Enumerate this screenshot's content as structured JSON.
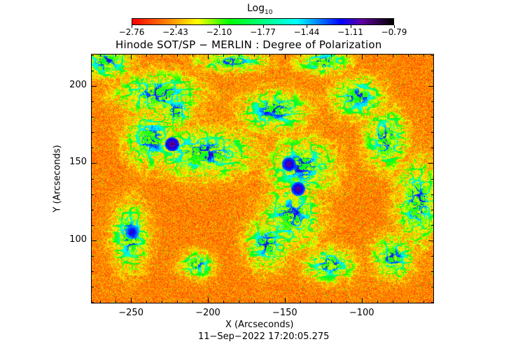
{
  "colorbar": {
    "label": "Log",
    "label_sub": "10",
    "ticks": [
      "−2.76",
      "−2.43",
      "−2.10",
      "−1.77",
      "−1.44",
      "−1.11",
      "−0.79"
    ]
  },
  "chart_data": {
    "type": "heatmap",
    "title": "Hinode SOT/SP − MERLIN : Degree of Polarization",
    "xlabel": "X (Arcseconds)",
    "ylabel": "Y (Arcseconds)",
    "xlim": [
      -276,
      -53
    ],
    "ylim": [
      59,
      221
    ],
    "xticks": [
      -250,
      -200,
      -150,
      -100
    ],
    "xtick_labels": [
      "−250",
      "−200",
      "−150",
      "−100"
    ],
    "yticks": [
      100,
      150,
      200
    ],
    "ytick_labels": [
      "100",
      "150",
      "200"
    ],
    "color_scale": "log10",
    "color_range": [
      -2.76,
      -0.79
    ],
    "colormap_stops": [
      "#ff0000",
      "#ff8000",
      "#ffff00",
      "#00ff00",
      "#00ffff",
      "#0000ff",
      "#6000a0",
      "#000000"
    ],
    "strong_features": [
      {
        "x": -224,
        "y": 163,
        "value": -0.85
      },
      {
        "x": -148,
        "y": 150,
        "value": -0.9
      },
      {
        "x": -142,
        "y": 134,
        "value": -0.9
      },
      {
        "x": -250,
        "y": 106,
        "value": -1.0
      }
    ]
  },
  "footer": {
    "timestamp": "11−Sep−2022 17:20:05.275"
  }
}
